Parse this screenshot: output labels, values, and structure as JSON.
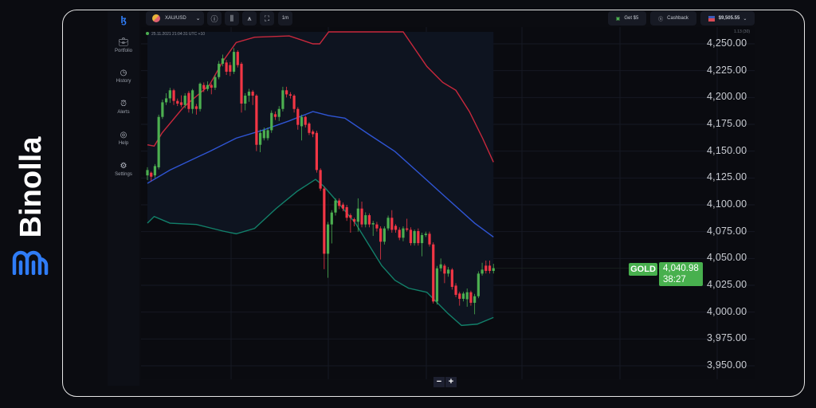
{
  "brand": {
    "name": "Binolla",
    "logo_color": "#2f7cf6"
  },
  "sidebar": {
    "items": [
      {
        "label": "Portfolio",
        "icon": "briefcase-icon"
      },
      {
        "label": "History",
        "icon": "history-icon"
      },
      {
        "label": "Alerts",
        "icon": "bell-icon"
      },
      {
        "label": "Help",
        "icon": "lifebuoy-icon"
      },
      {
        "label": "Settings",
        "icon": "gear-icon"
      }
    ]
  },
  "toolbar": {
    "asset": "XAU/USD",
    "timeframe": "1m",
    "get_bonus": "Get $5",
    "cashback": "Cashback",
    "balance": "$9,505.55"
  },
  "chart_info": {
    "timestamp": "25.11.2021  21:04:31  UTC +10",
    "scale_note": "1.13 (30)"
  },
  "colors": {
    "up": "#4caf50",
    "down": "#f23645",
    "upper_band": "#c8283c",
    "middle_band": "#2f55d4",
    "lower_band": "#12806a",
    "current_price": "#48b04e"
  },
  "current": {
    "label": "GOLD",
    "price": "4,040.98",
    "countdown": "38:27"
  },
  "zoom": {
    "minus": "−",
    "plus": "+"
  },
  "chart_data": {
    "type": "candlestick",
    "ylim": [
      3940,
      4265
    ],
    "y_ticks": [
      "4,250.00",
      "4,225.00",
      "4,200.00",
      "4,175.00",
      "4,150.00",
      "4,125.00",
      "4,100.00",
      "4,075.00",
      "4,050.00",
      "4,025.00",
      "4,000.00",
      "3,975.00",
      "3,950.00"
    ],
    "y_tick_values": [
      4250,
      4225,
      4200,
      4175,
      4150,
      4125,
      4100,
      4075,
      4050,
      4025,
      4000,
      3975,
      3950
    ],
    "grid": true,
    "candles_ohlc": [
      [
        4127.4,
        4135,
        4123,
        4132.4
      ],
      [
        4129.9,
        4131,
        4122,
        4126.2
      ],
      [
        4127.4,
        4138,
        4125,
        4136.1
      ],
      [
        4134.9,
        4184,
        4133,
        4181.9
      ],
      [
        4181.9,
        4198,
        4180,
        4195.5
      ],
      [
        4195.5,
        4204,
        4193,
        4199.2
      ],
      [
        4199.2,
        4209,
        4195,
        4206.7
      ],
      [
        4206.7,
        4208,
        4193,
        4196.8
      ],
      [
        4196.8,
        4199,
        4192,
        4194.3
      ],
      [
        4195.5,
        4202,
        4191,
        4193.0
      ],
      [
        4193.0,
        4204,
        4190,
        4201.7
      ],
      [
        4204.2,
        4206,
        4186,
        4189.3
      ],
      [
        4189.3,
        4208,
        4185,
        4206.7
      ],
      [
        4191.8,
        4194,
        4184,
        4189.3
      ],
      [
        4189.3,
        4214,
        4187,
        4212.8
      ],
      [
        4211.6,
        4214,
        4205,
        4207.9
      ],
      [
        4207.9,
        4215,
        4206,
        4211.6
      ],
      [
        4211.6,
        4213,
        4203,
        4209.1
      ],
      [
        4209.1,
        4221,
        4207,
        4219.0
      ],
      [
        4219.0,
        4234,
        4217,
        4231.4
      ],
      [
        4231.4,
        4240,
        4229,
        4236.4
      ],
      [
        4232.6,
        4235,
        4221,
        4224.0
      ],
      [
        4230.2,
        4233,
        4220,
        4224.0
      ],
      [
        4224.0,
        4246,
        4222,
        4242.5
      ],
      [
        4242.5,
        4244,
        4228,
        4230.2
      ],
      [
        4231.4,
        4233,
        4186,
        4194.3
      ],
      [
        4194.3,
        4204,
        4188,
        4201.7
      ],
      [
        4201.7,
        4208,
        4196,
        4205.4
      ],
      [
        4205.4,
        4207,
        4193,
        4201.7
      ],
      [
        4201.7,
        4203,
        4150,
        4155.9
      ],
      [
        4155.9,
        4170,
        4149,
        4167.0
      ],
      [
        4162.1,
        4172,
        4160,
        4169.5
      ],
      [
        4162.1,
        4172,
        4160,
        4169.5
      ],
      [
        4169.5,
        4188,
        4167,
        4185.6
      ],
      [
        4184.4,
        4187,
        4179,
        4181.9
      ],
      [
        4181.9,
        4192,
        4178,
        4189.3
      ],
      [
        4189.3,
        4210,
        4187,
        4206.7
      ],
      [
        4206.7,
        4210,
        4200,
        4202.9
      ],
      [
        4202.9,
        4205,
        4199,
        4201.7
      ],
      [
        4201.7,
        4203,
        4186,
        4189.3
      ],
      [
        4189.3,
        4191,
        4170,
        4174.5
      ],
      [
        4173.2,
        4184,
        4160,
        4181.9
      ],
      [
        4181.9,
        4183,
        4172,
        4174.5
      ],
      [
        4175.7,
        4177,
        4165,
        4167.0
      ],
      [
        4168.3,
        4170,
        4163,
        4165.8
      ],
      [
        4167.0,
        4169,
        4130,
        4132.4
      ],
      [
        4132.4,
        4134,
        4113,
        4115.1
      ],
      [
        4115.1,
        4117,
        4040,
        4054.4
      ],
      [
        4054.4,
        4084,
        4032,
        4081.7
      ],
      [
        4081.7,
        4095,
        4064,
        4092.8
      ],
      [
        4092.8,
        4106,
        4090,
        4104.0
      ],
      [
        4104.0,
        4106,
        4096,
        4099.0
      ],
      [
        4100.2,
        4102,
        4094,
        4096.5
      ],
      [
        4097.8,
        4100,
        4085,
        4087.9
      ],
      [
        4090.3,
        4092,
        4074,
        4087.9
      ],
      [
        4086.6,
        4088,
        4080,
        4084.2
      ],
      [
        4084.2,
        4106,
        4075,
        4096.5
      ],
      [
        4096.5,
        4103,
        4079,
        4081.7
      ],
      [
        4081.7,
        4093,
        4079,
        4090.3
      ],
      [
        4090.3,
        4092,
        4079,
        4081.7
      ],
      [
        4081.7,
        4085,
        4071,
        4082.9
      ],
      [
        4081.7,
        4084,
        4075,
        4078.0
      ],
      [
        4078.0,
        4080,
        4049,
        4065.6
      ],
      [
        4065.6,
        4080,
        4063,
        4078.0
      ],
      [
        4078.0,
        4090,
        4076,
        4087.9
      ],
      [
        4087.9,
        4095,
        4074,
        4076.7
      ],
      [
        4080.4,
        4082,
        4074,
        4076.7
      ],
      [
        4076.7,
        4079,
        4067,
        4069.3
      ],
      [
        4069.3,
        4080,
        4066,
        4078.0
      ],
      [
        4078.0,
        4087,
        4075,
        4076.7
      ],
      [
        4076.7,
        4079,
        4062,
        4064.3
      ],
      [
        4064.3,
        4077,
        4062,
        4075.5
      ],
      [
        4075.5,
        4078,
        4062,
        4064.3
      ],
      [
        4064.3,
        4074,
        4052,
        4071.8
      ],
      [
        4071.8,
        4075,
        4070,
        4073.0
      ],
      [
        4073.0,
        4075,
        4061,
        4063.1
      ],
      [
        4063.1,
        4065,
        4008,
        4009.9
      ],
      [
        4009.9,
        4043,
        4007,
        4040.8
      ],
      [
        4040.8,
        4050,
        4038,
        4044.5
      ],
      [
        4043.3,
        4045,
        4027,
        4035.9
      ],
      [
        4035.9,
        4042,
        4033,
        4039.6
      ],
      [
        4039.6,
        4041,
        4021,
        4023.5
      ],
      [
        4024.7,
        4027,
        4014,
        4016.1
      ],
      [
        4017.3,
        4019,
        4006,
        4012.4
      ],
      [
        4012.4,
        4019,
        4010,
        4017.3
      ],
      [
        4012.0,
        4022,
        4005,
        4018.5
      ],
      [
        4018.5,
        4020,
        4006,
        4008.7
      ],
      [
        4008.7,
        4017,
        3998,
        4014.8
      ],
      [
        4014.8,
        4038,
        4013,
        4035.9
      ],
      [
        4035.9,
        4046,
        4034,
        4039.6
      ],
      [
        4043.3,
        4048,
        4036,
        4038.4
      ],
      [
        4043.3,
        4048,
        4036,
        4038.4
      ],
      [
        4038.4,
        4045,
        4036,
        4040.98
      ]
    ],
    "bollinger": {
      "upper": [
        [
          0,
          4155.9
        ],
        [
          1.8,
          4154.7
        ],
        [
          3.9,
          4167.0
        ],
        [
          9.5,
          4190.6
        ],
        [
          16.5,
          4211.6
        ],
        [
          20.1,
          4233.9
        ],
        [
          23.6,
          4251.2
        ],
        [
          28.5,
          4256.2
        ],
        [
          37.7,
          4257.4
        ],
        [
          44.0,
          4250.0
        ],
        [
          45.8,
          4250.0
        ],
        [
          48.2,
          4262
        ],
        [
          68.0,
          4262
        ],
        [
          74.3,
          4228.9
        ],
        [
          78.5,
          4214.1
        ],
        [
          82.0,
          4206.7
        ],
        [
          85.6,
          4186.9
        ],
        [
          89.1,
          4162.1
        ],
        [
          92,
          4139.8
        ]
      ],
      "middle": [
        [
          0,
          4120.0
        ],
        [
          6.0,
          4132.4
        ],
        [
          16.5,
          4149.7
        ],
        [
          23.6,
          4162.1
        ],
        [
          30.6,
          4169.5
        ],
        [
          37.7,
          4178.2
        ],
        [
          44.0,
          4186.9
        ],
        [
          48.2,
          4183.1
        ],
        [
          52.5,
          4180.7
        ],
        [
          58.8,
          4165.8
        ],
        [
          65.8,
          4149.7
        ],
        [
          72.9,
          4127.4
        ],
        [
          79.9,
          4105.2
        ],
        [
          87.0,
          4082.9
        ],
        [
          92,
          4070.0
        ]
      ],
      "lower": [
        [
          0,
          4082.9
        ],
        [
          1.8,
          4089.1
        ],
        [
          6.0,
          4082.9
        ],
        [
          13.0,
          4081.7
        ],
        [
          20.1,
          4075.5
        ],
        [
          23.6,
          4073.0
        ],
        [
          28.5,
          4078.0
        ],
        [
          34.2,
          4096.5
        ],
        [
          39.8,
          4112.6
        ],
        [
          44.7,
          4123.7
        ],
        [
          46.8,
          4117.5
        ],
        [
          49.6,
          4106.4
        ],
        [
          55.3,
          4082.9
        ],
        [
          58.8,
          4063.1
        ],
        [
          62.3,
          4043.3
        ],
        [
          65.8,
          4029.7
        ],
        [
          69.4,
          4022.3
        ],
        [
          74.3,
          4018.5
        ],
        [
          76.4,
          4011.1
        ],
        [
          79.9,
          3998.7
        ],
        [
          83.5,
          3987.6
        ],
        [
          87.7,
          3988.8
        ],
        [
          92,
          3995.0
        ]
      ]
    }
  }
}
